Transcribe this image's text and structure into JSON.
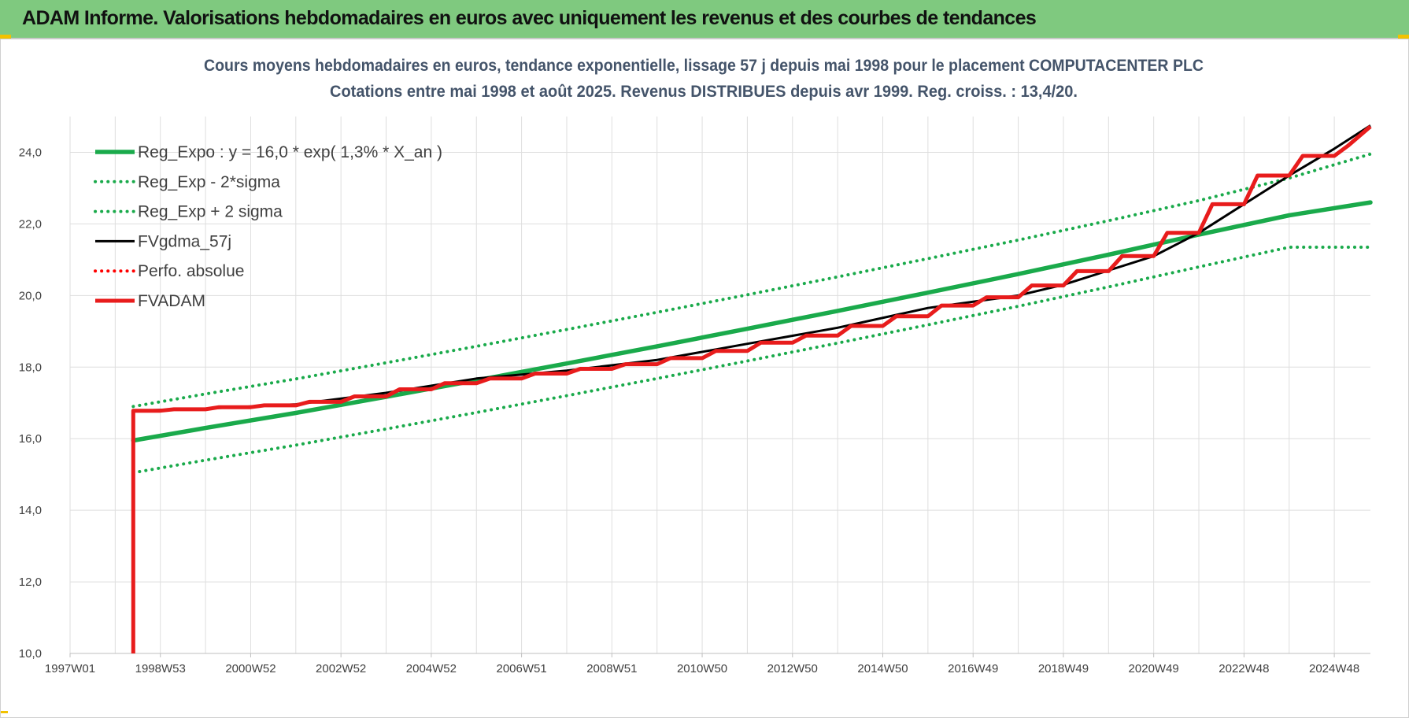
{
  "banner": {
    "title": "ADAM Informe. Valorisations hebdomadaires en euros avec uniquement les revenus et des courbes de tendances",
    "color": "#7fc97f"
  },
  "chart_data": {
    "type": "line",
    "title": "Cours moyens hebdomadaires en euros, tendance exponentielle, lissage 57 j depuis mai 1998 pour le placement COMPUTACENTER PLC",
    "subtitle": "Cotations entre mai 1998 et août 2025. Revenus DISTRIBUES depuis avr 1999. Reg. croiss. : 13,4/20.",
    "xlabel": "",
    "ylabel": "",
    "ylim": [
      10,
      25
    ],
    "xlim": [
      1997.0,
      2025.8
    ],
    "y_ticks": [
      "10,0",
      "12,0",
      "14,0",
      "16,0",
      "18,0",
      "20,0",
      "22,0",
      "24,0"
    ],
    "x_ticks": [
      {
        "label": "1997W01",
        "x": 1997.0
      },
      {
        "label": "1998W53",
        "x": 1999.0
      },
      {
        "label": "2000W52",
        "x": 2001.0
      },
      {
        "label": "2002W52",
        "x": 2003.0
      },
      {
        "label": "2004W52",
        "x": 2005.0
      },
      {
        "label": "2006W51",
        "x": 2007.0
      },
      {
        "label": "2008W51",
        "x": 2009.0
      },
      {
        "label": "2010W50",
        "x": 2011.0
      },
      {
        "label": "2012W50",
        "x": 2013.0
      },
      {
        "label": "2014W50",
        "x": 2015.0
      },
      {
        "label": "2016W49",
        "x": 2017.0
      },
      {
        "label": "2018W49",
        "x": 2019.0
      },
      {
        "label": "2020W49",
        "x": 2021.0
      },
      {
        "label": "2022W48",
        "x": 2023.0
      },
      {
        "label": "2024W48",
        "x": 2025.0
      }
    ],
    "grid": true,
    "legend_position": "top-left",
    "series": [
      {
        "name": "Reg_Expo : y = 16,0 * exp( 1,3% *  X_an )",
        "color": "#1aaa4b",
        "style": "solid",
        "x": [
          1998.4,
          2000,
          2002,
          2004,
          2006,
          2008,
          2010,
          2012,
          2014,
          2016,
          2018,
          2020,
          2022,
          2024,
          2025.8
        ],
        "y": [
          15.95,
          16.3,
          16.72,
          17.17,
          17.63,
          18.1,
          18.58,
          19.07,
          19.57,
          20.08,
          20.6,
          21.14,
          21.7,
          22.24,
          22.6
        ]
      },
      {
        "name": "Reg_Exp - 2*sigma",
        "color": "#1aaa4b",
        "style": "dotted",
        "x": [
          1998.4,
          2000,
          2002,
          2004,
          2006,
          2008,
          2010,
          2012,
          2014,
          2016,
          2018,
          2020,
          2022,
          2024,
          2025.8
        ],
        "y": [
          15.05,
          15.4,
          15.82,
          16.27,
          16.73,
          17.2,
          17.68,
          18.17,
          18.67,
          19.18,
          19.7,
          20.24,
          20.8,
          21.35,
          21.35
        ]
      },
      {
        "name": "Reg_Exp + 2 sigma",
        "color": "#1aaa4b",
        "style": "dotted",
        "x": [
          1998.4,
          2000,
          2002,
          2004,
          2006,
          2008,
          2010,
          2012,
          2014,
          2016,
          2018,
          2020,
          2022,
          2024,
          2025.8
        ],
        "y": [
          16.9,
          17.25,
          17.67,
          18.12,
          18.58,
          19.05,
          19.53,
          20.02,
          20.52,
          21.03,
          21.55,
          22.09,
          22.65,
          23.28,
          23.95
        ]
      },
      {
        "name": "FVgdma_57j",
        "color": "#000000",
        "style": "solid",
        "x": [
          1998.4,
          1998.4,
          2000,
          2002,
          2004,
          2006,
          2008,
          2010,
          2012,
          2014,
          2016,
          2018,
          2019,
          2020,
          2021,
          2022,
          2023,
          2024,
          2025,
          2025.8
        ],
        "y": [
          10.0,
          16.78,
          16.84,
          16.96,
          17.28,
          17.68,
          17.9,
          18.2,
          18.65,
          19.1,
          19.65,
          20.0,
          20.3,
          20.7,
          21.1,
          21.75,
          22.55,
          23.35,
          24.1,
          24.75
        ]
      },
      {
        "name": "Perfo. absolue",
        "color": "#ff0000",
        "style": "dotted",
        "x": [],
        "y": []
      },
      {
        "name": "FVADAM",
        "color": "#e81c1c",
        "style": "solid",
        "x": [
          1998.4,
          1998.4,
          1999.0,
          1999.3,
          2000.0,
          2000.3,
          2001.0,
          2001.3,
          2002.0,
          2002.3,
          2003.0,
          2003.3,
          2004.0,
          2004.3,
          2005.0,
          2005.3,
          2006.0,
          2006.3,
          2007.0,
          2007.3,
          2008.0,
          2008.3,
          2009.0,
          2009.3,
          2010.0,
          2010.3,
          2011.0,
          2011.3,
          2012.0,
          2012.3,
          2013.0,
          2013.3,
          2014.0,
          2014.3,
          2015.0,
          2015.3,
          2016.0,
          2016.3,
          2017.0,
          2017.3,
          2018.0,
          2018.3,
          2019.0,
          2019.3,
          2020.0,
          2020.3,
          2021.0,
          2021.3,
          2022.0,
          2022.3,
          2023.0,
          2023.3,
          2024.0,
          2024.3,
          2025.0,
          2025.3,
          2025.8
        ],
        "y": [
          10.0,
          16.78,
          16.78,
          16.82,
          16.82,
          16.88,
          16.88,
          16.93,
          16.93,
          17.03,
          17.03,
          17.18,
          17.18,
          17.38,
          17.38,
          17.55,
          17.55,
          17.68,
          17.68,
          17.82,
          17.82,
          17.95,
          17.95,
          18.08,
          18.08,
          18.25,
          18.25,
          18.45,
          18.45,
          18.68,
          18.68,
          18.88,
          18.88,
          19.15,
          19.15,
          19.42,
          19.42,
          19.72,
          19.72,
          19.95,
          19.95,
          20.28,
          20.28,
          20.68,
          20.68,
          21.1,
          21.1,
          21.75,
          21.75,
          22.55,
          22.55,
          23.35,
          23.35,
          23.9,
          23.9,
          24.18,
          24.72
        ]
      }
    ]
  }
}
